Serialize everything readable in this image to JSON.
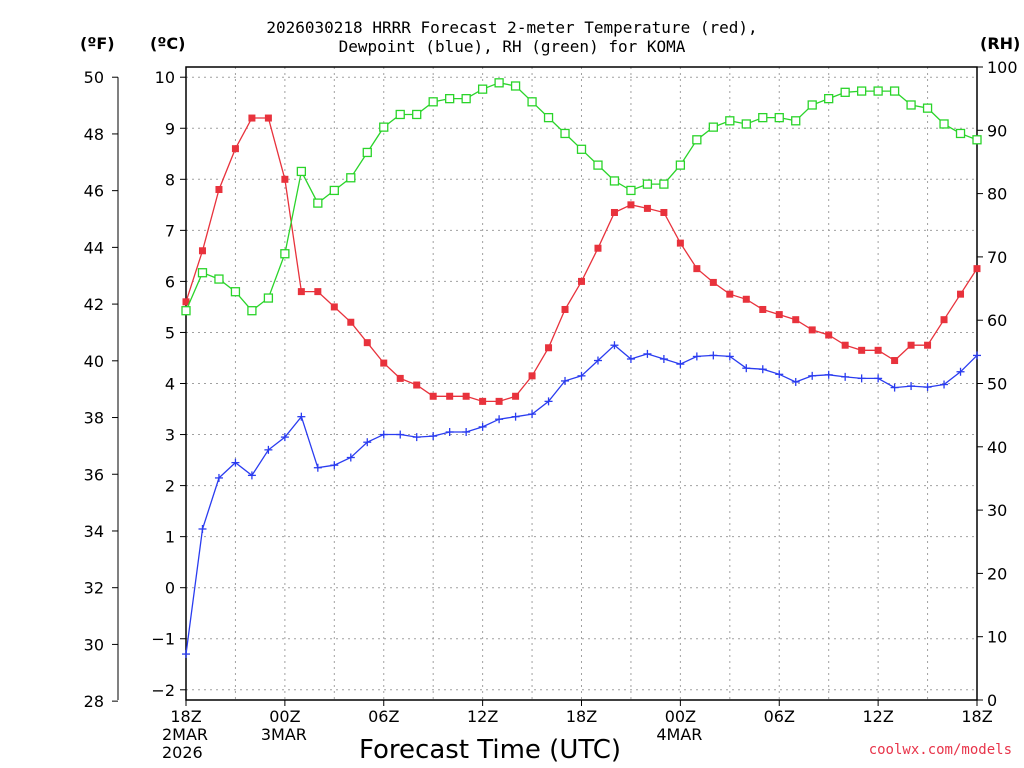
{
  "title": {
    "line1": "2026030218 HRRR Forecast 2-meter Temperature (red),",
    "line2": "Dewpoint (blue), RH (green) for KOMA"
  },
  "units": {
    "left_outer": "(ºF)",
    "left_inner": "(ºC)",
    "right": "(RH)"
  },
  "credit": "coolwx.com/models",
  "colors": {
    "temperature": "#e8323c",
    "dewpoint": "#2a3cf0",
    "rh": "#2ad42a",
    "grid": "#a0a0a0"
  },
  "chart_data": {
    "type": "line",
    "xlabel": "Forecast Time (UTC)",
    "x_hours": [
      0,
      1,
      2,
      3,
      4,
      5,
      6,
      7,
      8,
      9,
      10,
      11,
      12,
      13,
      14,
      15,
      16,
      17,
      18,
      19,
      20,
      21,
      22,
      23,
      24,
      25,
      26,
      27,
      28,
      29,
      30,
      31,
      32,
      33,
      34,
      35,
      36,
      37,
      38,
      39,
      40,
      41,
      42,
      43,
      44,
      45,
      46,
      47,
      48
    ],
    "xlim": [
      0,
      48
    ],
    "x_ticks": [
      {
        "hour": 0,
        "lines": [
          "18Z",
          "2MAR",
          "2026"
        ]
      },
      {
        "hour": 6,
        "lines": [
          "00Z",
          "3MAR"
        ]
      },
      {
        "hour": 12,
        "lines": [
          "06Z"
        ]
      },
      {
        "hour": 18,
        "lines": [
          "12Z"
        ]
      },
      {
        "hour": 24,
        "lines": [
          "18Z"
        ]
      },
      {
        "hour": 30,
        "lines": [
          "00Z",
          "4MAR"
        ]
      },
      {
        "hour": 36,
        "lines": [
          "06Z"
        ]
      },
      {
        "hour": 42,
        "lines": [
          "12Z"
        ]
      },
      {
        "hour": 48,
        "lines": [
          "18Z"
        ]
      }
    ],
    "y_celsius": {
      "ylim": [
        -2.2,
        10.2
      ],
      "ticks": [
        "-2",
        "-1",
        "0",
        "1",
        "2",
        "3",
        "4",
        "5",
        "6",
        "7",
        "8",
        "9",
        "10"
      ]
    },
    "y_fahrenheit": {
      "ylim": [
        28.04,
        50.36
      ],
      "ticks": [
        "28",
        "30",
        "32",
        "34",
        "36",
        "38",
        "40",
        "42",
        "44",
        "46",
        "48",
        "50"
      ]
    },
    "y_rh": {
      "ylim": [
        0,
        100
      ],
      "ticks": [
        "0",
        "10",
        "20",
        "30",
        "40",
        "50",
        "60",
        "70",
        "80",
        "90",
        "100"
      ]
    },
    "series": [
      {
        "key": "temperature",
        "axis": "c",
        "marker": "filled-square",
        "values": [
          5.6,
          6.6,
          7.8,
          8.6,
          9.2,
          9.2,
          8.0,
          5.8,
          5.8,
          5.5,
          5.2,
          4.8,
          4.4,
          4.1,
          3.97,
          3.75,
          3.75,
          3.75,
          3.65,
          3.65,
          3.75,
          4.15,
          4.7,
          5.45,
          6.0,
          6.65,
          7.35,
          7.5,
          7.43,
          7.35,
          6.75,
          6.25,
          5.98,
          5.75,
          5.65,
          5.45,
          5.35,
          5.25,
          5.05,
          4.95,
          4.75,
          4.65,
          4.65,
          4.45,
          4.75,
          4.75,
          5.25,
          5.75,
          6.25
        ]
      },
      {
        "key": "dewpoint",
        "axis": "c",
        "marker": "plus",
        "values": [
          -1.3,
          1.15,
          2.15,
          2.45,
          2.2,
          2.7,
          2.95,
          3.35,
          2.35,
          2.4,
          2.55,
          2.85,
          3.0,
          3.0,
          2.95,
          2.97,
          3.05,
          3.05,
          3.15,
          3.3,
          3.35,
          3.4,
          3.65,
          4.05,
          4.15,
          4.45,
          4.75,
          4.48,
          4.58,
          4.48,
          4.38,
          4.53,
          4.55,
          4.53,
          4.3,
          4.28,
          4.18,
          4.03,
          4.15,
          4.17,
          4.13,
          4.1,
          4.1,
          3.92,
          3.95,
          3.93,
          3.98,
          4.23,
          4.55
        ]
      },
      {
        "key": "rh",
        "axis": "rh",
        "marker": "open-square",
        "values": [
          61.5,
          67.5,
          66.5,
          64.5,
          61.5,
          63.5,
          70.5,
          83.5,
          78.5,
          80.5,
          82.5,
          86.5,
          90.5,
          92.5,
          92.5,
          94.5,
          95.0,
          95.0,
          96.5,
          97.5,
          97.0,
          94.5,
          92.0,
          89.5,
          87.0,
          84.5,
          82.0,
          80.5,
          81.5,
          81.5,
          84.5,
          88.5,
          90.5,
          91.5,
          91.0,
          92.0,
          92.0,
          91.5,
          94.0,
          95.0,
          96.0,
          96.2,
          96.2,
          96.2,
          94.0,
          93.5,
          91.0,
          89.5,
          88.5
        ]
      }
    ]
  }
}
